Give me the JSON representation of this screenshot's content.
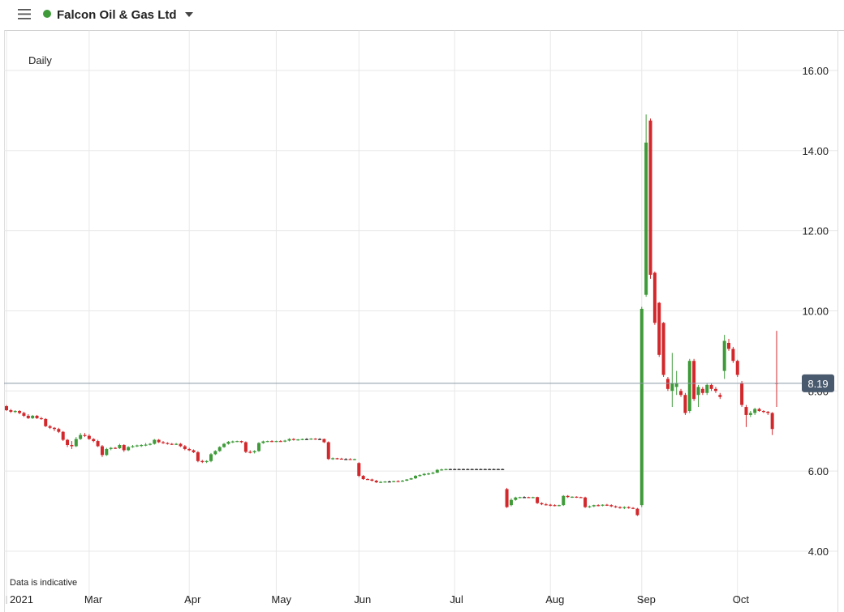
{
  "header": {
    "title": "Falcon Oil & Gas Ltd"
  },
  "chart_data": {
    "type": "candlestick",
    "interval": "Daily",
    "note": "Data is indicative",
    "up_color": "#3f9b3a",
    "down_color": "#d2282c",
    "flat_color": "#222222",
    "grid": true,
    "last_price": 8.19,
    "ylim": [
      3,
      17
    ],
    "yticks": [
      {
        "value": 4,
        "label": "4.00"
      },
      {
        "value": 6,
        "label": "6.00"
      },
      {
        "value": 8,
        "label": "8.00"
      },
      {
        "value": 10,
        "label": "10.00"
      },
      {
        "value": 12,
        "label": "12.00"
      },
      {
        "value": 14,
        "label": "14.00"
      },
      {
        "value": 16,
        "label": "16.00"
      }
    ],
    "categories": [
      "2021",
      null,
      null,
      null,
      null,
      null,
      null,
      null,
      null,
      null,
      null,
      null,
      null,
      null,
      null,
      null,
      null,
      null,
      null,
      "Mar",
      null,
      null,
      null,
      null,
      null,
      null,
      null,
      null,
      null,
      null,
      null,
      null,
      null,
      null,
      null,
      null,
      null,
      null,
      null,
      null,
      null,
      null,
      "Apr",
      null,
      null,
      null,
      null,
      null,
      null,
      null,
      null,
      null,
      null,
      null,
      null,
      null,
      null,
      null,
      null,
      null,
      null,
      null,
      "May",
      null,
      null,
      null,
      null,
      null,
      null,
      null,
      null,
      null,
      null,
      null,
      null,
      null,
      null,
      null,
      null,
      null,
      null,
      "Jun",
      null,
      null,
      null,
      null,
      null,
      null,
      null,
      null,
      null,
      null,
      null,
      null,
      null,
      null,
      null,
      null,
      null,
      null,
      null,
      null,
      null,
      "Jul",
      null,
      null,
      null,
      null,
      null,
      null,
      null,
      null,
      null,
      null,
      null,
      null,
      null,
      null,
      null,
      null,
      null,
      null,
      null,
      null,
      null,
      "Aug",
      null,
      null,
      null,
      null,
      null,
      null,
      null,
      null,
      null,
      null,
      null,
      null,
      null,
      null,
      null,
      null,
      null,
      null,
      null,
      null,
      "Sep",
      null,
      null,
      null,
      null,
      null,
      null,
      null,
      null,
      null,
      null,
      null,
      null,
      null,
      null,
      null,
      null,
      null,
      null,
      null,
      null,
      null,
      "Oct",
      null,
      null,
      null,
      null,
      null,
      null,
      null,
      null,
      null
    ],
    "ohlc": [
      [
        7.62,
        7.65,
        7.5,
        7.52
      ],
      [
        7.52,
        7.55,
        7.45,
        7.48
      ],
      [
        7.48,
        7.52,
        7.45,
        7.5
      ],
      [
        7.5,
        7.52,
        7.42,
        7.45
      ],
      [
        7.45,
        7.48,
        7.35,
        7.38
      ],
      [
        7.38,
        7.42,
        7.3,
        7.32
      ],
      [
        7.32,
        7.4,
        7.3,
        7.38
      ],
      [
        7.38,
        7.4,
        7.3,
        7.32
      ],
      [
        7.32,
        7.35,
        7.28,
        7.3
      ],
      [
        7.3,
        7.32,
        7.1,
        7.12
      ],
      [
        7.12,
        7.15,
        7.05,
        7.08
      ],
      [
        7.08,
        7.1,
        7.0,
        7.05
      ],
      [
        7.05,
        7.08,
        6.95,
        6.98
      ],
      [
        6.98,
        7.0,
        6.75,
        6.78
      ],
      [
        6.78,
        6.8,
        6.6,
        6.65
      ],
      [
        6.65,
        6.75,
        6.55,
        6.62
      ],
      [
        6.62,
        6.85,
        6.6,
        6.8
      ],
      [
        6.8,
        6.95,
        6.78,
        6.9
      ],
      [
        6.9,
        6.95,
        6.85,
        6.88
      ],
      [
        6.88,
        6.92,
        6.78,
        6.8
      ],
      [
        6.8,
        6.82,
        6.72,
        6.75
      ],
      [
        6.75,
        6.78,
        6.6,
        6.62
      ],
      [
        6.62,
        6.65,
        6.35,
        6.4
      ],
      [
        6.4,
        6.58,
        6.38,
        6.55
      ],
      [
        6.55,
        6.6,
        6.52,
        6.58
      ],
      [
        6.58,
        6.6,
        6.55,
        6.57
      ],
      [
        6.57,
        6.68,
        6.55,
        6.65
      ],
      [
        6.65,
        6.67,
        6.48,
        6.52
      ],
      [
        6.52,
        6.62,
        6.5,
        6.6
      ],
      [
        6.6,
        6.65,
        6.58,
        6.62
      ],
      [
        6.62,
        6.66,
        6.6,
        6.64
      ],
      [
        6.64,
        6.67,
        6.6,
        6.65
      ],
      [
        6.65,
        6.7,
        6.62,
        6.66
      ],
      [
        6.66,
        6.7,
        6.64,
        6.68
      ],
      [
        6.68,
        6.8,
        6.66,
        6.78
      ],
      [
        6.78,
        6.8,
        6.7,
        6.72
      ],
      [
        6.72,
        6.75,
        6.68,
        6.7
      ],
      [
        6.7,
        6.72,
        6.66,
        6.68
      ],
      [
        6.68,
        6.7,
        6.65,
        6.67
      ],
      [
        6.67,
        6.7,
        6.65,
        6.68
      ],
      [
        6.68,
        6.7,
        6.6,
        6.62
      ],
      [
        6.62,
        6.65,
        6.52,
        6.55
      ],
      [
        6.55,
        6.58,
        6.5,
        6.52
      ],
      [
        6.52,
        6.54,
        6.45,
        6.47
      ],
      [
        6.47,
        6.5,
        6.22,
        6.25
      ],
      [
        6.25,
        6.28,
        6.2,
        6.24
      ],
      [
        6.24,
        6.27,
        6.2,
        6.25
      ],
      [
        6.25,
        6.45,
        6.22,
        6.42
      ],
      [
        6.42,
        6.52,
        6.4,
        6.5
      ],
      [
        6.5,
        6.62,
        6.48,
        6.6
      ],
      [
        6.6,
        6.7,
        6.58,
        6.68
      ],
      [
        6.68,
        6.75,
        6.66,
        6.73
      ],
      [
        6.73,
        6.76,
        6.7,
        6.74
      ],
      [
        6.74,
        6.76,
        6.72,
        6.75
      ],
      [
        6.75,
        6.76,
        6.7,
        6.72
      ],
      [
        6.72,
        6.74,
        6.45,
        6.48
      ],
      [
        6.48,
        6.52,
        6.44,
        6.47
      ],
      [
        6.47,
        6.52,
        6.44,
        6.5
      ],
      [
        6.5,
        6.72,
        6.48,
        6.7
      ],
      [
        6.7,
        6.76,
        6.68,
        6.74
      ],
      [
        6.74,
        6.76,
        6.72,
        6.75
      ],
      [
        6.75,
        6.77,
        6.72,
        6.74
      ],
      [
        6.74,
        6.76,
        6.72,
        6.75
      ],
      [
        6.75,
        6.77,
        6.73,
        6.74
      ],
      [
        6.74,
        6.78,
        6.72,
        6.76
      ],
      [
        6.76,
        6.82,
        6.74,
        6.8
      ],
      [
        6.8,
        6.82,
        6.76,
        6.78
      ],
      [
        6.78,
        6.8,
        6.76,
        6.79
      ],
      [
        6.79,
        6.81,
        6.77,
        6.8
      ],
      [
        6.8,
        6.82,
        6.78,
        6.8
      ],
      [
        6.8,
        6.82,
        6.78,
        6.81
      ],
      [
        6.81,
        6.82,
        6.78,
        6.8
      ],
      [
        6.8,
        6.82,
        6.78,
        6.8
      ],
      [
        6.8,
        6.81,
        6.7,
        6.72
      ],
      [
        6.72,
        6.74,
        6.28,
        6.3
      ],
      [
        6.3,
        6.34,
        6.28,
        6.32
      ],
      [
        6.32,
        6.33,
        6.29,
        6.31
      ],
      [
        6.31,
        6.33,
        6.29,
        6.3
      ],
      [
        6.3,
        6.32,
        6.28,
        6.3
      ],
      [
        6.3,
        6.32,
        6.28,
        6.29
      ],
      [
        6.29,
        6.31,
        6.27,
        6.3
      ],
      [
        6.2,
        6.22,
        5.85,
        5.88
      ],
      [
        5.88,
        5.9,
        5.78,
        5.8
      ],
      [
        5.8,
        5.82,
        5.78,
        5.79
      ],
      [
        5.79,
        5.81,
        5.74,
        5.76
      ],
      [
        5.76,
        5.78,
        5.7,
        5.72
      ],
      [
        5.72,
        5.75,
        5.7,
        5.73
      ],
      [
        5.73,
        5.75,
        5.71,
        5.74
      ],
      [
        5.74,
        5.76,
        5.72,
        5.74
      ],
      [
        5.74,
        5.76,
        5.72,
        5.75
      ],
      [
        5.75,
        5.77,
        5.73,
        5.74
      ],
      [
        5.74,
        5.78,
        5.73,
        5.76
      ],
      [
        5.76,
        5.8,
        5.75,
        5.79
      ],
      [
        5.79,
        5.83,
        5.78,
        5.82
      ],
      [
        5.82,
        5.9,
        5.8,
        5.88
      ],
      [
        5.88,
        5.92,
        5.86,
        5.9
      ],
      [
        5.9,
        5.95,
        5.88,
        5.93
      ],
      [
        5.93,
        5.96,
        5.9,
        5.94
      ],
      [
        5.94,
        5.98,
        5.92,
        5.96
      ],
      [
        5.96,
        6.05,
        5.95,
        6.03
      ],
      [
        6.03,
        6.06,
        6.01,
        6.04
      ],
      [
        6.04,
        6.06,
        6.02,
        6.05
      ],
      [
        6.05,
        6.06,
        6.03,
        6.05
      ],
      [
        6.05,
        6.06,
        6.04,
        6.05
      ],
      [
        6.05,
        6.06,
        6.04,
        6.05
      ],
      [
        6.05,
        6.06,
        6.04,
        6.05
      ],
      [
        6.05,
        6.06,
        6.04,
        6.05
      ],
      [
        6.05,
        6.06,
        6.04,
        6.05
      ],
      [
        6.05,
        6.06,
        6.04,
        6.05
      ],
      [
        6.05,
        6.06,
        6.04,
        6.05
      ],
      [
        6.05,
        6.06,
        6.04,
        6.05
      ],
      [
        6.05,
        6.06,
        6.04,
        6.05
      ],
      [
        6.05,
        6.06,
        6.04,
        6.05
      ],
      [
        6.05,
        6.06,
        6.04,
        6.05
      ],
      [
        6.05,
        6.06,
        6.04,
        6.05
      ],
      [
        5.55,
        5.58,
        5.08,
        5.1
      ],
      [
        5.15,
        5.32,
        5.12,
        5.28
      ],
      [
        5.28,
        5.36,
        5.26,
        5.34
      ],
      [
        5.34,
        5.36,
        5.32,
        5.35
      ],
      [
        5.35,
        5.37,
        5.33,
        5.35
      ],
      [
        5.35,
        5.36,
        5.33,
        5.34
      ],
      [
        5.34,
        5.36,
        5.32,
        5.35
      ],
      [
        5.35,
        5.36,
        5.18,
        5.2
      ],
      [
        5.2,
        5.22,
        5.15,
        5.17
      ],
      [
        5.17,
        5.2,
        5.14,
        5.16
      ],
      [
        5.16,
        5.18,
        5.12,
        5.15
      ],
      [
        5.15,
        5.17,
        5.12,
        5.14
      ],
      [
        5.14,
        5.16,
        5.12,
        5.15
      ],
      [
        5.15,
        5.4,
        5.13,
        5.38
      ],
      [
        5.38,
        5.4,
        5.33,
        5.35
      ],
      [
        5.35,
        5.37,
        5.33,
        5.36
      ],
      [
        5.36,
        5.37,
        5.33,
        5.35
      ],
      [
        5.35,
        5.36,
        5.33,
        5.34
      ],
      [
        5.34,
        5.36,
        5.08,
        5.1
      ],
      [
        5.1,
        5.14,
        5.08,
        5.12
      ],
      [
        5.12,
        5.16,
        5.1,
        5.15
      ],
      [
        5.15,
        5.17,
        5.12,
        5.14
      ],
      [
        5.14,
        5.17,
        5.12,
        5.16
      ],
      [
        5.16,
        5.18,
        5.13,
        5.15
      ],
      [
        5.15,
        5.17,
        5.1,
        5.12
      ],
      [
        5.12,
        5.14,
        5.08,
        5.1
      ],
      [
        5.1,
        5.12,
        5.06,
        5.08
      ],
      [
        5.08,
        5.12,
        5.05,
        5.1
      ],
      [
        5.1,
        5.12,
        5.06,
        5.08
      ],
      [
        5.08,
        5.1,
        5.05,
        5.06
      ],
      [
        5.06,
        5.08,
        4.88,
        4.9
      ],
      [
        5.15,
        10.1,
        5.1,
        10.05
      ],
      [
        10.4,
        14.9,
        10.35,
        14.2
      ],
      [
        14.75,
        14.8,
        10.8,
        10.9
      ],
      [
        10.95,
        10.98,
        9.65,
        9.7
      ],
      [
        10.2,
        10.22,
        8.85,
        8.9
      ],
      [
        9.7,
        9.72,
        8.35,
        8.4
      ],
      [
        8.3,
        8.35,
        8.0,
        8.05
      ],
      [
        8.0,
        8.95,
        7.6,
        8.2
      ],
      [
        8.1,
        8.5,
        7.9,
        8.2
      ],
      [
        8.0,
        8.05,
        7.85,
        7.9
      ],
      [
        7.9,
        7.95,
        7.4,
        7.45
      ],
      [
        7.5,
        8.8,
        7.45,
        8.75
      ],
      [
        8.75,
        8.8,
        7.75,
        7.8
      ],
      [
        7.9,
        8.15,
        7.6,
        8.1
      ],
      [
        8.05,
        8.1,
        7.9,
        7.95
      ],
      [
        7.95,
        8.2,
        7.9,
        8.15
      ],
      [
        8.15,
        8.18,
        8.0,
        8.05
      ],
      [
        8.05,
        8.1,
        7.95,
        8.0
      ],
      [
        7.9,
        7.95,
        7.8,
        7.85
      ],
      [
        8.5,
        9.4,
        8.3,
        9.25
      ],
      [
        9.2,
        9.3,
        9.0,
        9.05
      ],
      [
        9.05,
        9.1,
        8.7,
        8.75
      ],
      [
        8.75,
        8.78,
        8.35,
        8.4
      ],
      [
        8.2,
        8.25,
        7.6,
        7.65
      ],
      [
        7.6,
        7.65,
        7.1,
        7.4
      ],
      [
        7.4,
        7.5,
        7.35,
        7.45
      ],
      [
        7.45,
        7.58,
        7.4,
        7.55
      ],
      [
        7.55,
        7.58,
        7.48,
        7.5
      ],
      [
        7.5,
        7.52,
        7.45,
        7.48
      ],
      [
        7.48,
        7.5,
        7.4,
        7.45
      ],
      [
        7.45,
        7.47,
        6.9,
        7.05
      ],
      [
        8.2,
        9.5,
        7.6,
        8.19
      ]
    ]
  }
}
